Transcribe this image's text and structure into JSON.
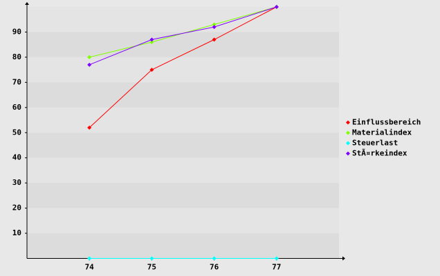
{
  "chart_data": {
    "type": "line",
    "x": [
      74,
      75,
      76,
      77
    ],
    "xlim": [
      73,
      78
    ],
    "xticks": [
      74,
      75,
      76,
      77
    ],
    "ylim": [
      0,
      100
    ],
    "yticks": [
      10,
      20,
      30,
      40,
      50,
      60,
      70,
      80,
      90
    ],
    "grid": "bands",
    "legend": "right",
    "series": [
      {
        "name": "Einflussbereich",
        "color": "#ff0000",
        "values": [
          52,
          75,
          87,
          100
        ]
      },
      {
        "name": "Materialindex",
        "color": "#80ff00",
        "values": [
          80,
          86,
          93,
          100
        ]
      },
      {
        "name": "Steuerlast",
        "color": "#00ffff",
        "values": [
          0,
          0,
          0,
          0
        ]
      },
      {
        "name": "StÃ¤rkeindex",
        "color": "#8000ff",
        "values": [
          77,
          87,
          92,
          100
        ]
      }
    ]
  }
}
